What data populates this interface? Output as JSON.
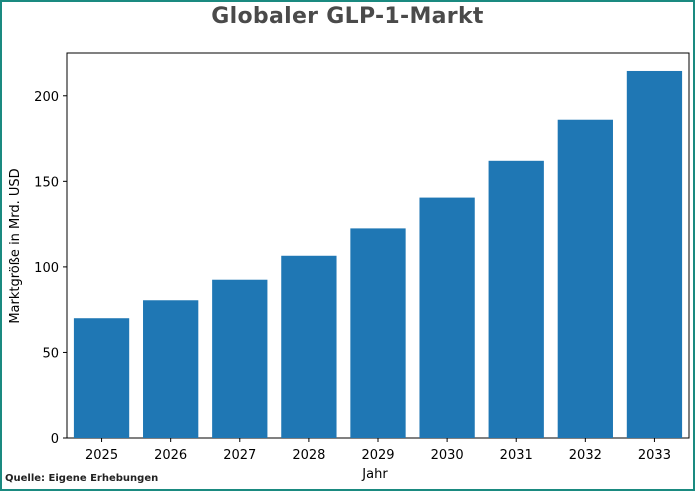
{
  "chart_data": {
    "type": "bar",
    "title": "Globaler GLP-1-Markt",
    "xlabel": "Jahr",
    "ylabel": "Marktgröße in Mrd. USD",
    "categories": [
      "2025",
      "2026",
      "2027",
      "2028",
      "2029",
      "2030",
      "2031",
      "2032",
      "2033"
    ],
    "values": [
      70,
      80.5,
      92.5,
      106.5,
      122.5,
      140.5,
      162,
      186,
      214.5
    ],
    "ylim": [
      0,
      225
    ],
    "yticks": [
      0,
      50,
      100,
      150,
      200
    ],
    "bar_color": "#1f77b4",
    "grid": false,
    "legend": "none"
  },
  "source": "Quelle: Eigene Erhebungen",
  "frame_color": "#1a8a80"
}
